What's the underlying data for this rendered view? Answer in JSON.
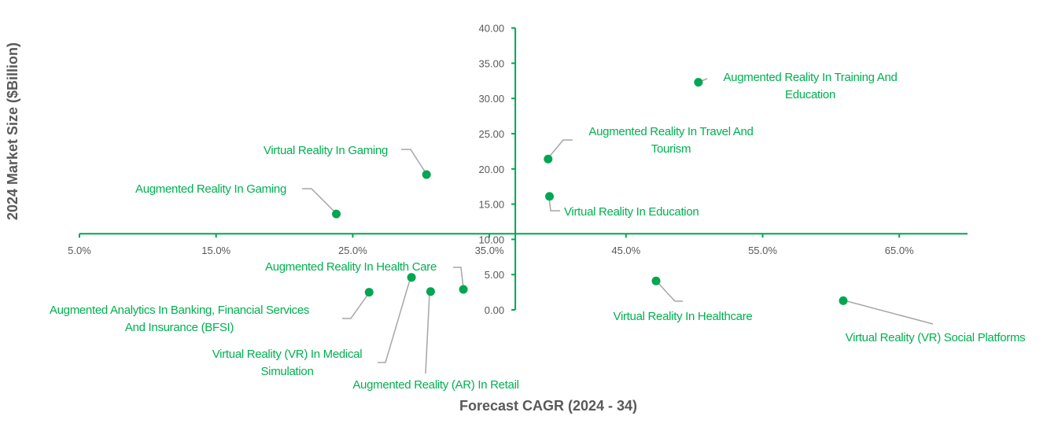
{
  "chart_data": {
    "type": "scatter",
    "title": "",
    "xlabel": "Forecast CAGR (2024 - 34)",
    "ylabel": "2024 Market Size ($Billion)",
    "xlim": [
      5,
      70
    ],
    "ylim": [
      0,
      40
    ],
    "x_ticks": [
      "5.0%",
      "15.0%",
      "25.0%",
      "35.0%",
      "45.0%",
      "55.0%",
      "65.0%"
    ],
    "y_ticks": [
      "0.00",
      "5.00",
      "10.00",
      "15.00",
      "20.00",
      "25.00",
      "30.00",
      "35.00",
      "40.00"
    ],
    "x_axis_crosses_at_y": 10.8,
    "y_axis_crosses_at_x": 36.9,
    "grid": false,
    "colors": {
      "point": "#00A651",
      "label": "#00B050",
      "axis": "#00A651",
      "leader": "#A6A6A6"
    },
    "points": [
      {
        "x": 50.3,
        "y": 32.3,
        "label_lines": [
          "Augmented Reality In Training And",
          "Education"
        ]
      },
      {
        "x": 30.4,
        "y": 19.2,
        "label_lines": [
          "Virtual Reality In Gaming"
        ]
      },
      {
        "x": 23.8,
        "y": 13.6,
        "label_lines": [
          "Augmented Reality In Gaming"
        ]
      },
      {
        "x": 39.3,
        "y": 21.4,
        "label_lines": [
          "Augmented Reality In Travel And",
          "Tourism"
        ]
      },
      {
        "x": 39.4,
        "y": 16.1,
        "label_lines": [
          "Virtual Reality In Education"
        ]
      },
      {
        "x": 33.1,
        "y": 2.9,
        "label_lines": [
          "Augmented Reality In Health Care"
        ]
      },
      {
        "x": 26.2,
        "y": 2.5,
        "label_lines": [
          "Augmented Analytics In Banking, Financial Services",
          "And Insurance (BFSI)"
        ]
      },
      {
        "x": 29.3,
        "y": 4.6,
        "label_lines": [
          "Virtual Reality (VR) In Medical",
          "Simulation"
        ]
      },
      {
        "x": 30.7,
        "y": 2.6,
        "label_lines": [
          "Augmented Reality (AR) In Retail"
        ]
      },
      {
        "x": 47.2,
        "y": 4.1,
        "label_lines": [
          "Virtual Reality In Healthcare"
        ]
      },
      {
        "x": 60.9,
        "y": 1.3,
        "label_lines": [
          "Virtual Reality (VR) Social Platforms"
        ]
      }
    ]
  }
}
